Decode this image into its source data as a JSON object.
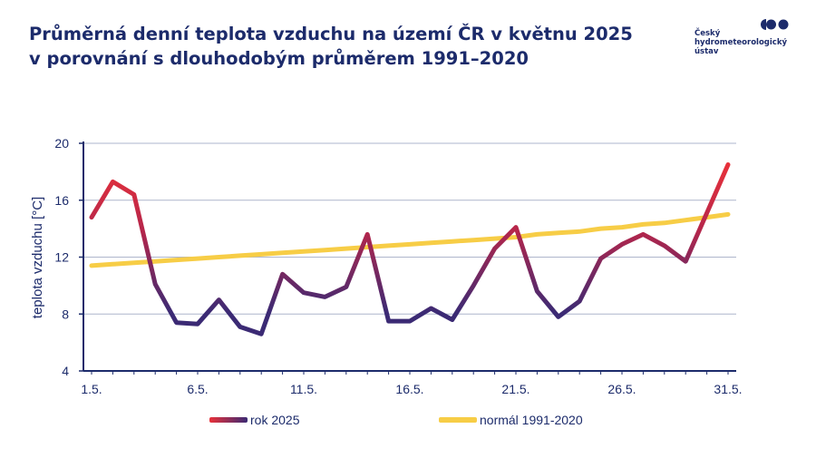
{
  "header": {
    "title_line1": "Průměrná denní teplota vzduchu na území ČR v květnu 2025",
    "title_line2": "v porovnání s dlouhodobým průměrem 1991–2020"
  },
  "logo": {
    "line1": "Český",
    "line2": "hydrometeorologický",
    "line3": "ústav",
    "color": "#1c2b6b"
  },
  "chart_data": {
    "type": "line",
    "ylabel": "teplota vzduchu [°C]",
    "xlabel": "",
    "ylim": [
      4,
      20
    ],
    "yticks": [
      4,
      8,
      12,
      16,
      20
    ],
    "xlim": [
      1,
      31
    ],
    "xticks": [
      {
        "day": 1,
        "label": "1.5."
      },
      {
        "day": 6,
        "label": "6.5."
      },
      {
        "day": 11,
        "label": "11.5."
      },
      {
        "day": 16,
        "label": "16.5."
      },
      {
        "day": 21,
        "label": "21.5."
      },
      {
        "day": 26,
        "label": "26.5."
      },
      {
        "day": 31,
        "label": "31.5."
      }
    ],
    "grid": "horizontal",
    "legend_position": "bottom",
    "series": [
      {
        "name": "rok 2025",
        "style": "gradient",
        "color_warm": "#e8313a",
        "color_cold": "#3b2a74",
        "x": [
          1,
          2,
          3,
          4,
          5,
          6,
          7,
          8,
          9,
          10,
          11,
          12,
          13,
          14,
          15,
          16,
          17,
          18,
          19,
          20,
          21,
          22,
          23,
          24,
          25,
          26,
          27,
          28,
          29,
          30,
          31
        ],
        "values": [
          14.8,
          17.3,
          16.4,
          10.1,
          7.4,
          7.3,
          9.0,
          7.1,
          6.6,
          10.8,
          9.5,
          9.2,
          9.9,
          13.6,
          7.5,
          7.5,
          8.4,
          7.6,
          10.0,
          12.6,
          14.1,
          9.6,
          7.8,
          8.9,
          11.9,
          12.9,
          13.6,
          12.8,
          11.7,
          15.1,
          18.5
        ]
      },
      {
        "name": "normál 1991-2020",
        "color": "#f7cd46",
        "x": [
          1,
          2,
          3,
          4,
          5,
          6,
          7,
          8,
          9,
          10,
          11,
          12,
          13,
          14,
          15,
          16,
          17,
          18,
          19,
          20,
          21,
          22,
          23,
          24,
          25,
          26,
          27,
          28,
          29,
          30,
          31
        ],
        "values": [
          11.4,
          11.5,
          11.6,
          11.7,
          11.8,
          11.9,
          12.0,
          12.1,
          12.2,
          12.3,
          12.4,
          12.5,
          12.6,
          12.7,
          12.8,
          12.9,
          13.0,
          13.1,
          13.2,
          13.3,
          13.4,
          13.6,
          13.7,
          13.8,
          14.0,
          14.1,
          14.3,
          14.4,
          14.6,
          14.8,
          15.0
        ]
      }
    ]
  }
}
